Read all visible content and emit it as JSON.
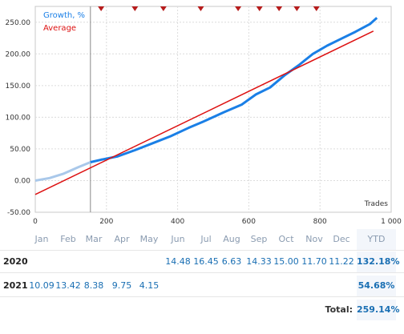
{
  "chart_data": {
    "type": "line",
    "xlabel": "Trades",
    "ylabel": "",
    "xlim": [
      0,
      1000
    ],
    "ylim": [
      -50,
      275
    ],
    "x_ticks": [
      "0",
      "200",
      "400",
      "600",
      "800",
      "1 000"
    ],
    "y_ticks": [
      "-50.00",
      "0.00",
      "50.00",
      "100.00",
      "150.00",
      "200.00",
      "250.00"
    ],
    "grid": true,
    "legend": "top-left",
    "vertical_marker_x": 155,
    "event_markers_x": [
      185,
      280,
      360,
      465,
      570,
      630,
      685,
      735,
      790
    ],
    "series": [
      {
        "name": "Growth, %",
        "color": "#1a7fe6",
        "x": [
          0,
          40,
          80,
          120,
          155,
          185,
          230,
          280,
          330,
          380,
          430,
          480,
          530,
          580,
          620,
          660,
          700,
          740,
          780,
          820,
          860,
          900,
          940,
          960
        ],
        "y": [
          0,
          4,
          11,
          21,
          29,
          33,
          38,
          48,
          59,
          70,
          83,
          95,
          108,
          120,
          136,
          147,
          166,
          182,
          200,
          213,
          224,
          235,
          247,
          257
        ]
      },
      {
        "name": "Average",
        "color": "#dd1111",
        "x": [
          0,
          950
        ],
        "y": [
          -22,
          236
        ]
      }
    ]
  },
  "table": {
    "headers": [
      "Jan",
      "Feb",
      "Mar",
      "Apr",
      "May",
      "Jun",
      "Jul",
      "Aug",
      "Sep",
      "Oct",
      "Nov",
      "Dec",
      "YTD"
    ],
    "rows": [
      {
        "year": "2020",
        "values": [
          "",
          "",
          "",
          "",
          "",
          "14.48",
          "16.45",
          "6.63",
          "14.33",
          "15.00",
          "11.70",
          "11.22"
        ],
        "ytd": "132.18%"
      },
      {
        "year": "2021",
        "values": [
          "10.09",
          "13.42",
          "8.38",
          "9.75",
          "4.15",
          "",
          "",
          "",
          "",
          "",
          "",
          ""
        ],
        "ytd": "54.68%"
      }
    ],
    "total_label": "Total:",
    "total_value": "259.14%"
  }
}
